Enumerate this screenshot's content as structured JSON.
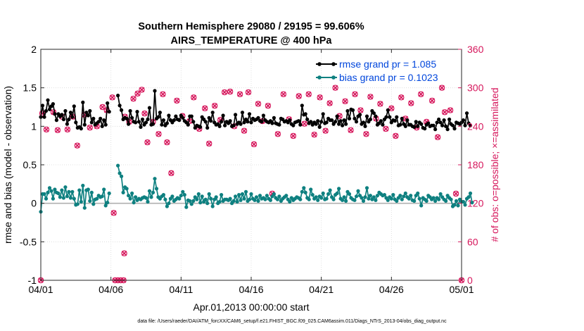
{
  "chart_data": {
    "type": "line",
    "title": "Southern Hemisphere 29080 / 29195 = 99.606%",
    "subtitle": "AIRS_TEMPERATURE @ 400 hPa",
    "xlabel": "Apr.01,2013 00:00:00 start",
    "ylabel": "rmse and bias (model - observation)",
    "y2label": "# of obs: o=possible; ×=assimilated",
    "footnote": "data file: /Users/raeder/DAI/ATM_forcXX/CAM6_setup/f.e21.FHIST_BGC.f09_025.CAM6assim.011/Diags_NTrS_2013-04/obs_diag_output.nc",
    "xlim": [
      0,
      30
    ],
    "ylim": [
      -1,
      2
    ],
    "y2lim": [
      0,
      360
    ],
    "x_ticks": [
      0,
      5,
      10,
      15,
      20,
      25,
      30
    ],
    "x_tick_labels": [
      "04/01",
      "04/06",
      "04/11",
      "04/16",
      "04/21",
      "04/26",
      "05/01"
    ],
    "y_ticks": [
      -1,
      -0.5,
      0,
      0.5,
      1,
      1.5,
      2
    ],
    "y_tick_labels": [
      "-1",
      "-0.5",
      "0",
      "0.5",
      "1",
      "1.5",
      "2"
    ],
    "y2_ticks": [
      0,
      60,
      120,
      180,
      240,
      300,
      360
    ],
    "y2_tick_labels": [
      "0",
      "60",
      "120",
      "180",
      "240",
      "300",
      "360"
    ],
    "legend": [
      {
        "name": "rmse grand pr = 1.085",
        "color": "#000000"
      },
      {
        "name": "bias grand pr = 0.1023",
        "color": "#0e8080"
      }
    ],
    "legend_position": "top-right",
    "colors": {
      "rmse": "#000000",
      "bias": "#0e8080",
      "obs": "#d6175c",
      "zero": "#b0b0b0",
      "legend_text": "#0046dc"
    },
    "step_days": 0.125,
    "gap_start_index": 40,
    "gap_length": 4,
    "rmse": [
      1.12,
      1.27,
      1.12,
      1.2,
      1.34,
      1.22,
      1.26,
      1.29,
      1.16,
      1.08,
      1.16,
      1.13,
      1.15,
      1.09,
      1.2,
      1.03,
      1.09,
      1.18,
      1.12,
      1.26,
      1.05,
      0.98,
      0.99,
      0.97,
      1.31,
      1.02,
      1.18,
      1.14,
      1.2,
      1.05,
      1.1,
      1.02,
      1.04,
      1.06,
      1.1,
      1.0,
      1.08,
      1.02,
      1.3,
      1.19,
      1.4,
      1.27,
      1.21,
      1.09,
      1.11,
      1.1,
      1.03,
      1.2,
      1.11,
      1.06,
      1.05,
      1.19,
      1.06,
      0.99,
      1.09,
      1.02,
      1.05,
      1.09,
      1.24,
      1.02,
      1.03,
      1.46,
      1.1,
      1.12,
      1.18,
      1.02,
      1.08,
      1.01,
      1.04,
      1.14,
      1.08,
      1.05,
      1.08,
      1.13,
      1.09,
      1.08,
      1.14,
      1.11,
      1.07,
      1.05,
      1.02,
      1.13,
      1.13,
      1.06,
      0.98,
      1.01,
      1.0,
      0.99,
      1.12,
      1.09,
      1.06,
      0.98,
      1.11,
      1.07,
      1.18,
      1.05,
      1.02,
      1.03,
      1.0,
      1.06,
      1.14,
      1.01,
      1.06,
      1.04,
      1.07,
      1.0,
      1.01,
      1.15,
      1.03,
      1.05,
      1.03,
      1.18,
      1.05,
      1.09,
      1.06,
      1.16,
      1.05,
      1.1,
      1.08,
      1.09,
      1.11,
      1.07,
      1.06,
      1.14,
      1.08,
      1.06,
      1.05,
      1.07,
      1.04,
      1.11,
      1.04,
      1.03,
      1.02,
      1.1,
      1.09,
      1.06,
      1.07,
      1.05,
      1.08,
      1.03,
      1.01,
      1.05,
      1.06,
      1.07,
      1.02,
      1.27,
      1.15,
      1.16,
      1.09,
      1.04,
      1.06,
      1.02,
      1.05,
      1.03,
      1.07,
      0.99,
      1.06,
      1.16,
      1.04,
      1.05,
      1.1,
      1.08,
      1.08,
      1.03,
      1.06,
      1.13,
      1.03,
      1.07,
      1.01,
      1.08,
      1.03,
      1.2,
      1.1,
      1.22,
      1.21,
      1.1,
      1.06,
      1.13,
      1.15,
      1.03,
      1.05,
      1.0,
      1.13,
      1.06,
      1.09,
      1.2,
      1.17,
      1.13,
      1.02,
      1.04,
      1.07,
      1.02,
      1.09,
      1.12,
      1.21,
      1.12,
      1.05,
      1.08,
      1.07,
      1.12,
      1.01,
      1.02,
      1.1,
      1.03,
      1.0,
      1.08,
      1.02,
      1.02,
      1.0,
      0.99,
      1.06,
      1.0,
      1.05,
      1.03,
      0.98,
      0.97,
      1.02,
      1.04,
      1.0,
      1.01,
      1.01,
      0.96,
      1.05,
      1.09,
      1.05,
      1.01,
      1.08,
      1.0,
      0.96,
      1.09,
      1.03,
      1.01,
      0.97,
      1.05,
      1.04,
      1.03,
      1.05,
      1.08,
      1.01,
      1.17,
      1.04,
      1.01
    ],
    "bias": [
      -0.11,
      0.12,
      0.12,
      0.06,
      0.14,
      0.2,
      0.16,
      0.06,
      0.18,
      0.14,
      0.13,
      0.08,
      0.17,
      0.07,
      0.21,
      0.09,
      0.15,
      0.07,
      0.15,
      0.06,
      -0.02,
      -0.01,
      0.17,
      0.02,
      0.23,
      -0.06,
      0.17,
      0.18,
      0.03,
      0.14,
      -0.01,
      0.05,
      0.06,
      0.1,
      0.08,
      0.09,
      0.18,
      -0.03,
      0.01,
      0.13,
      0.49,
      0.39,
      0.35,
      0.14,
      0.21,
      0.19,
      0.1,
      0.06,
      0.13,
      0.01,
      0.08,
      0.04,
      0.06,
      0.05,
      0.07,
      0.08,
      0.07,
      0.02,
      0.16,
      0.08,
      0.14,
      0.32,
      0.19,
      0.08,
      0.06,
      0.09,
      0.11,
      0.05,
      -0.04,
      0.0,
      0.06,
      0.09,
      0.03,
      0.05,
      0.07,
      0.06,
      0.1,
      0.15,
      0.11,
      -0.05,
      0.04,
      0.03,
      -0.01,
      0.03,
      0.08,
      0.05,
      0.12,
      0.01,
      0.09,
      0.02,
      0.05,
      0.0,
      0.12,
      0.06,
      -0.04,
      0.05,
      0.08,
      0.0,
      0.02,
      0.11,
      0.03,
      0.05,
      0.05,
      0.04,
      0.06,
      0.0,
      0.03,
      0.09,
      0.02,
      0.11,
      0.04,
      0.12,
      0.06,
      0.15,
      0.03,
      0.05,
      0.12,
      0.06,
      0.04,
      0.08,
      0.03,
      0.1,
      0.06,
      0.07,
      0.05,
      0.1,
      0.06,
      0.04,
      0.09,
      0.12,
      0.07,
      0.05,
      0.09,
      0.03,
      0.06,
      0.08,
      0.1,
      0.05,
      0.02,
      0.07,
      0.04,
      0.06,
      0.08,
      0.07,
      0.05,
      0.15,
      0.2,
      0.14,
      0.07,
      0.05,
      0.18,
      0.11,
      0.06,
      0.08,
      0.04,
      0.09,
      0.07,
      0.13,
      0.05,
      0.06,
      0.12,
      0.17,
      0.08,
      0.05,
      0.11,
      0.13,
      0.19,
      0.06,
      0.04,
      0.08,
      0.03,
      0.15,
      0.12,
      0.07,
      0.05,
      0.04,
      0.09,
      0.16,
      0.1,
      0.07,
      0.03,
      0.08,
      0.2,
      0.06,
      0.1,
      0.05,
      0.08,
      0.04,
      0.1,
      0.14,
      0.12,
      0.1,
      0.11,
      0.07,
      0.04,
      0.08,
      0.06,
      0.11,
      0.05,
      0.03,
      0.07,
      0.1,
      0.05,
      0.09,
      0.13,
      0.08,
      0.06,
      0.1,
      0.04,
      0.03,
      0.1,
      0.13,
      0.06,
      -0.03,
      0.07,
      0.05,
      0.03,
      0.1,
      0.08,
      0.05,
      0.07,
      0.03,
      0.07,
      0.05,
      0.12,
      0.08,
      0.05,
      0.03,
      0.1,
      0.07,
      0.05,
      -0.04,
      -0.02,
      0.03,
      -0.03,
      0.05,
      0.02,
      0.02,
      -0.02,
      0.06,
      0.08,
      0.13,
      0.01
    ],
    "obs_counts": [
      {
        "x": 0.0,
        "v": 0
      },
      {
        "x": 0.1,
        "v": 260
      },
      {
        "x": 0.4,
        "v": 235
      },
      {
        "x": 0.9,
        "v": 262
      },
      {
        "x": 1.2,
        "v": 234
      },
      {
        "x": 1.5,
        "v": 255
      },
      {
        "x": 1.9,
        "v": 235
      },
      {
        "x": 2.3,
        "v": 255
      },
      {
        "x": 2.6,
        "v": 210
      },
      {
        "x": 3.1,
        "v": 258
      },
      {
        "x": 3.5,
        "v": 238
      },
      {
        "x": 4.0,
        "v": 240
      },
      {
        "x": 4.4,
        "v": 270
      },
      {
        "x": 4.7,
        "v": 265
      },
      {
        "x": 5.1,
        "v": 285
      },
      {
        "x": 5.2,
        "v": 105
      },
      {
        "x": 5.3,
        "v": 0
      },
      {
        "x": 5.5,
        "v": 0
      },
      {
        "x": 5.7,
        "v": 0
      },
      {
        "x": 5.9,
        "v": 0
      },
      {
        "x": 5.95,
        "v": 42
      },
      {
        "x": 6.0,
        "v": 255
      },
      {
        "x": 6.3,
        "v": 247
      },
      {
        "x": 6.6,
        "v": 283
      },
      {
        "x": 6.9,
        "v": 291
      },
      {
        "x": 7.2,
        "v": 297
      },
      {
        "x": 7.4,
        "v": 260
      },
      {
        "x": 7.6,
        "v": 215
      },
      {
        "x": 8.0,
        "v": 247
      },
      {
        "x": 8.4,
        "v": 228
      },
      {
        "x": 8.7,
        "v": 290
      },
      {
        "x": 9.0,
        "v": 215
      },
      {
        "x": 9.3,
        "v": 167
      },
      {
        "x": 9.7,
        "v": 280
      },
      {
        "x": 10.1,
        "v": 256
      },
      {
        "x": 10.6,
        "v": 248
      },
      {
        "x": 10.9,
        "v": 285
      },
      {
        "x": 11.3,
        "v": 236
      },
      {
        "x": 11.7,
        "v": 268
      },
      {
        "x": 12.0,
        "v": 213
      },
      {
        "x": 12.4,
        "v": 272
      },
      {
        "x": 12.8,
        "v": 250
      },
      {
        "x": 13.1,
        "v": 293
      },
      {
        "x": 13.5,
        "v": 294
      },
      {
        "x": 13.8,
        "v": 240
      },
      {
        "x": 14.2,
        "v": 290
      },
      {
        "x": 14.5,
        "v": 233
      },
      {
        "x": 14.8,
        "v": 293
      },
      {
        "x": 15.2,
        "v": 212
      },
      {
        "x": 15.5,
        "v": 275
      },
      {
        "x": 15.8,
        "v": 248
      },
      {
        "x": 16.2,
        "v": 272
      },
      {
        "x": 16.5,
        "v": 135
      },
      {
        "x": 16.9,
        "v": 228
      },
      {
        "x": 17.3,
        "v": 290
      },
      {
        "x": 17.7,
        "v": 251
      },
      {
        "x": 18.0,
        "v": 225
      },
      {
        "x": 18.4,
        "v": 287
      },
      {
        "x": 18.8,
        "v": 244
      },
      {
        "x": 19.1,
        "v": 290
      },
      {
        "x": 19.5,
        "v": 227
      },
      {
        "x": 19.9,
        "v": 285
      },
      {
        "x": 20.3,
        "v": 233
      },
      {
        "x": 20.6,
        "v": 276
      },
      {
        "x": 21.0,
        "v": 300
      },
      {
        "x": 21.3,
        "v": 256
      },
      {
        "x": 21.7,
        "v": 279
      },
      {
        "x": 22.1,
        "v": 234
      },
      {
        "x": 22.4,
        "v": 290
      },
      {
        "x": 22.8,
        "v": 265
      },
      {
        "x": 23.2,
        "v": 228
      },
      {
        "x": 23.5,
        "v": 286
      },
      {
        "x": 23.9,
        "v": 252
      },
      {
        "x": 24.2,
        "v": 275
      },
      {
        "x": 24.6,
        "v": 236
      },
      {
        "x": 25.0,
        "v": 268
      },
      {
        "x": 25.3,
        "v": 225
      },
      {
        "x": 25.7,
        "v": 285
      },
      {
        "x": 26.0,
        "v": 252
      },
      {
        "x": 26.4,
        "v": 276
      },
      {
        "x": 26.8,
        "v": 238
      },
      {
        "x": 27.1,
        "v": 290
      },
      {
        "x": 27.5,
        "v": 247
      },
      {
        "x": 27.9,
        "v": 280
      },
      {
        "x": 28.3,
        "v": 223
      },
      {
        "x": 28.6,
        "v": 300
      },
      {
        "x": 28.8,
        "v": 262
      },
      {
        "x": 29.2,
        "v": 265
      },
      {
        "x": 29.6,
        "v": 135
      },
      {
        "x": 30.0,
        "v": 0
      }
    ]
  }
}
